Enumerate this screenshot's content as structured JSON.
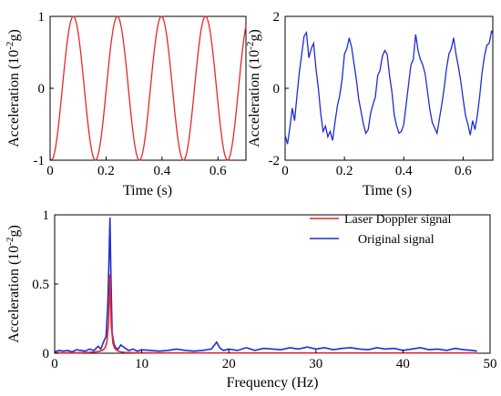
{
  "colors": {
    "red": "#e8262a",
    "blue": "#1f2bd6"
  },
  "chart_data": [
    {
      "type": "line",
      "xlabel": "Time (s)",
      "ylabel_main": "Acceleration (10",
      "ylabel_sup": "-2",
      "ylabel_end": "g)",
      "xlim": [
        0,
        0.7
      ],
      "ylim": [
        -1,
        1
      ],
      "xticks": [
        "0",
        "0.2",
        "0.4",
        "0.6"
      ],
      "xtick_values": [
        0,
        0.2,
        0.4,
        0.6
      ],
      "yticks": [
        "-1",
        "0",
        "1"
      ],
      "ytick_values": [
        -1,
        0,
        1
      ],
      "series": [
        {
          "color": "red",
          "kind": "sine",
          "amplitude": 1.0,
          "frequency": 6.35,
          "phase_peak_t": 0.083
        }
      ]
    },
    {
      "type": "line",
      "xlabel": "Time (s)",
      "ylabel_main": "Acceleration (10",
      "ylabel_sup": "-2",
      "ylabel_end": "g)",
      "xlim": [
        0,
        0.7
      ],
      "ylim": [
        -2,
        2
      ],
      "xticks": [
        "0",
        "0.2",
        "0.4",
        "0.6"
      ],
      "xtick_values": [
        0,
        0.2,
        0.4,
        0.6
      ],
      "yticks": [
        "-2",
        "0",
        "2"
      ],
      "ytick_values": [
        -2,
        0,
        2
      ],
      "series": [
        {
          "color": "blue",
          "x": [
            0.0,
            0.008,
            0.016,
            0.024,
            0.032,
            0.04,
            0.048,
            0.056,
            0.064,
            0.072,
            0.08,
            0.088,
            0.096,
            0.104,
            0.112,
            0.12,
            0.128,
            0.136,
            0.144,
            0.152,
            0.16,
            0.168,
            0.176,
            0.184,
            0.192,
            0.2,
            0.208,
            0.216,
            0.224,
            0.232,
            0.24,
            0.248,
            0.256,
            0.264,
            0.272,
            0.28,
            0.288,
            0.296,
            0.304,
            0.312,
            0.32,
            0.328,
            0.336,
            0.344,
            0.352,
            0.36,
            0.368,
            0.376,
            0.384,
            0.392,
            0.4,
            0.408,
            0.416,
            0.424,
            0.432,
            0.44,
            0.448,
            0.456,
            0.464,
            0.472,
            0.48,
            0.488,
            0.496,
            0.504,
            0.512,
            0.52,
            0.528,
            0.536,
            0.544,
            0.552,
            0.56,
            0.568,
            0.576,
            0.584,
            0.592,
            0.6,
            0.608,
            0.616,
            0.624,
            0.632,
            0.64,
            0.648,
            0.656,
            0.664,
            0.672,
            0.68,
            0.688,
            0.696,
            0.7
          ],
          "y": [
            -1.3,
            -1.55,
            -1.1,
            -0.55,
            -0.9,
            -0.2,
            0.45,
            0.95,
            1.45,
            1.55,
            0.85,
            1.1,
            1.25,
            0.55,
            0.0,
            -0.7,
            -1.2,
            -1.05,
            -1.35,
            -1.2,
            -1.45,
            -0.95,
            -0.5,
            -0.2,
            0.25,
            0.95,
            1.1,
            1.4,
            1.15,
            0.7,
            0.25,
            -0.3,
            -0.65,
            -1.0,
            -1.25,
            -1.15,
            -0.7,
            -0.45,
            -0.25,
            0.35,
            0.5,
            0.9,
            1.05,
            0.95,
            0.35,
            -0.1,
            -0.75,
            -1.05,
            -1.25,
            -1.2,
            -1.0,
            -0.45,
            0.1,
            0.65,
            0.8,
            1.5,
            1.05,
            0.8,
            0.65,
            0.4,
            -0.1,
            -0.6,
            -0.95,
            -1.1,
            -1.25,
            -0.85,
            -0.45,
            0.0,
            0.55,
            0.95,
            1.1,
            1.4,
            0.95,
            0.6,
            0.2,
            -0.3,
            -0.75,
            -1.0,
            -1.3,
            -0.9,
            -1.15,
            -0.75,
            -0.2,
            0.45,
            0.9,
            1.2,
            1.25,
            1.6,
            1.5
          ]
        }
      ]
    },
    {
      "type": "line",
      "xlabel": "Frequency (Hz)",
      "ylabel_main": "Acceleration (10",
      "ylabel_sup": "-2",
      "ylabel_end": "g)",
      "xlim": [
        0,
        50
      ],
      "ylim": [
        0,
        1
      ],
      "xticks": [
        "0",
        "10",
        "20",
        "30",
        "40",
        "50"
      ],
      "xtick_values": [
        0,
        10,
        20,
        30,
        40,
        50
      ],
      "yticks": [
        "0",
        "0.5",
        "1"
      ],
      "ytick_values": [
        0,
        0.5,
        1
      ],
      "legend": {
        "position": "top-right",
        "entries": [
          "Laser Doppler signal",
          "Original signal"
        ]
      },
      "series": [
        {
          "name": "Laser Doppler signal",
          "color": "red",
          "x": [
            0,
            1,
            2,
            3,
            4,
            5,
            5.5,
            5.8,
            6.0,
            6.2,
            6.35,
            6.5,
            6.7,
            6.9,
            7.2,
            7.6,
            8,
            9,
            10,
            15,
            20,
            25,
            30,
            35,
            40,
            45,
            48.5
          ],
          "y": [
            0.003,
            0.003,
            0.004,
            0.004,
            0.006,
            0.012,
            0.02,
            0.04,
            0.08,
            0.22,
            0.57,
            0.2,
            0.07,
            0.035,
            0.018,
            0.01,
            0.006,
            0.004,
            0.003,
            0.002,
            0.002,
            0.002,
            0.002,
            0.002,
            0.002,
            0.002,
            0.002
          ]
        },
        {
          "name": "Original signal",
          "color": "blue",
          "x": [
            0,
            0.5,
            1,
            1.5,
            2,
            2.5,
            3,
            3.5,
            4,
            4.5,
            5,
            5.3,
            5.6,
            5.9,
            6.1,
            6.25,
            6.35,
            6.45,
            6.6,
            6.8,
            7.0,
            7.3,
            7.6,
            8,
            8.5,
            9,
            9.5,
            10,
            11,
            12,
            13,
            14,
            15,
            16,
            17,
            18,
            18.6,
            19,
            19.4,
            20,
            21,
            22,
            22.5,
            23,
            24,
            25,
            26,
            27,
            28,
            29,
            30,
            31,
            32,
            33,
            34,
            35,
            36,
            37,
            38,
            39,
            40,
            41,
            42,
            43,
            44,
            45,
            46,
            47,
            48,
            48.5
          ],
          "y": [
            0.01,
            0.02,
            0.015,
            0.02,
            0.01,
            0.025,
            0.02,
            0.015,
            0.03,
            0.02,
            0.05,
            0.03,
            0.08,
            0.12,
            0.35,
            0.7,
            0.98,
            0.6,
            0.15,
            0.07,
            0.04,
            0.03,
            0.06,
            0.04,
            0.02,
            0.03,
            0.015,
            0.025,
            0.02,
            0.015,
            0.02,
            0.03,
            0.02,
            0.015,
            0.02,
            0.03,
            0.08,
            0.035,
            0.02,
            0.03,
            0.02,
            0.04,
            0.03,
            0.02,
            0.035,
            0.03,
            0.025,
            0.04,
            0.03,
            0.045,
            0.03,
            0.04,
            0.025,
            0.035,
            0.04,
            0.03,
            0.025,
            0.04,
            0.03,
            0.035,
            0.02,
            0.03,
            0.04,
            0.025,
            0.03,
            0.02,
            0.035,
            0.025,
            0.02,
            0.015
          ]
        }
      ]
    }
  ]
}
